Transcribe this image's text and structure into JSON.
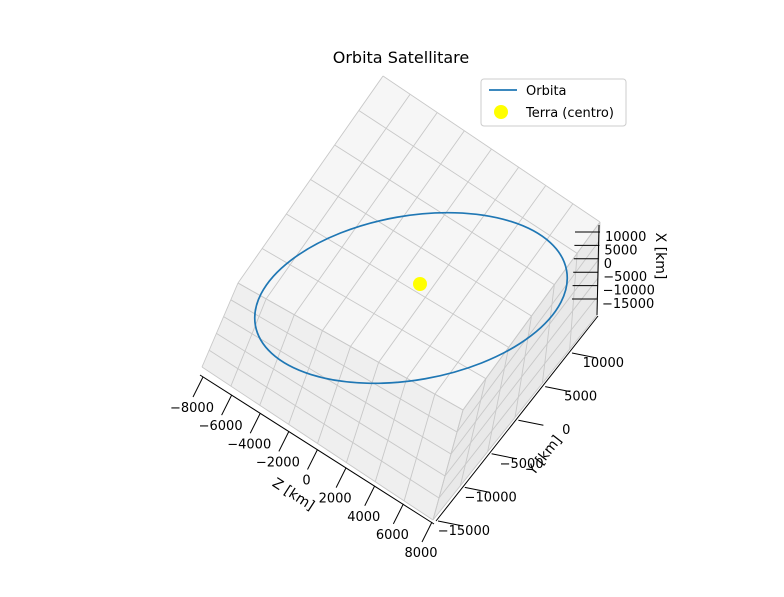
{
  "chart_data": {
    "type": "line",
    "projection": "3d",
    "title": "Orbita Satellitare",
    "xlabel": "X [km]",
    "ylabel": "Y [km]",
    "zlabel": "Z [km]",
    "x_ticks": [
      "10000",
      "5000",
      "0",
      "−5000",
      "−10000",
      "−15000"
    ],
    "y_ticks": [
      "10000",
      "5000",
      "0",
      "−5000",
      "−10000",
      "−15000"
    ],
    "z_ticks": [
      "−8000",
      "−6000",
      "−4000",
      "−2000",
      "0",
      "2000",
      "4000",
      "6000",
      "8000"
    ],
    "grid": true,
    "legend_position": "top-right",
    "series": [
      {
        "name": "Orbita",
        "type": "line",
        "color": "#1f77b4",
        "shape": "closed-ellipse"
      },
      {
        "name": "Terra (centro)",
        "type": "marker",
        "color": "#ffff00",
        "x": 0,
        "y": 0,
        "z": 0
      }
    ]
  }
}
